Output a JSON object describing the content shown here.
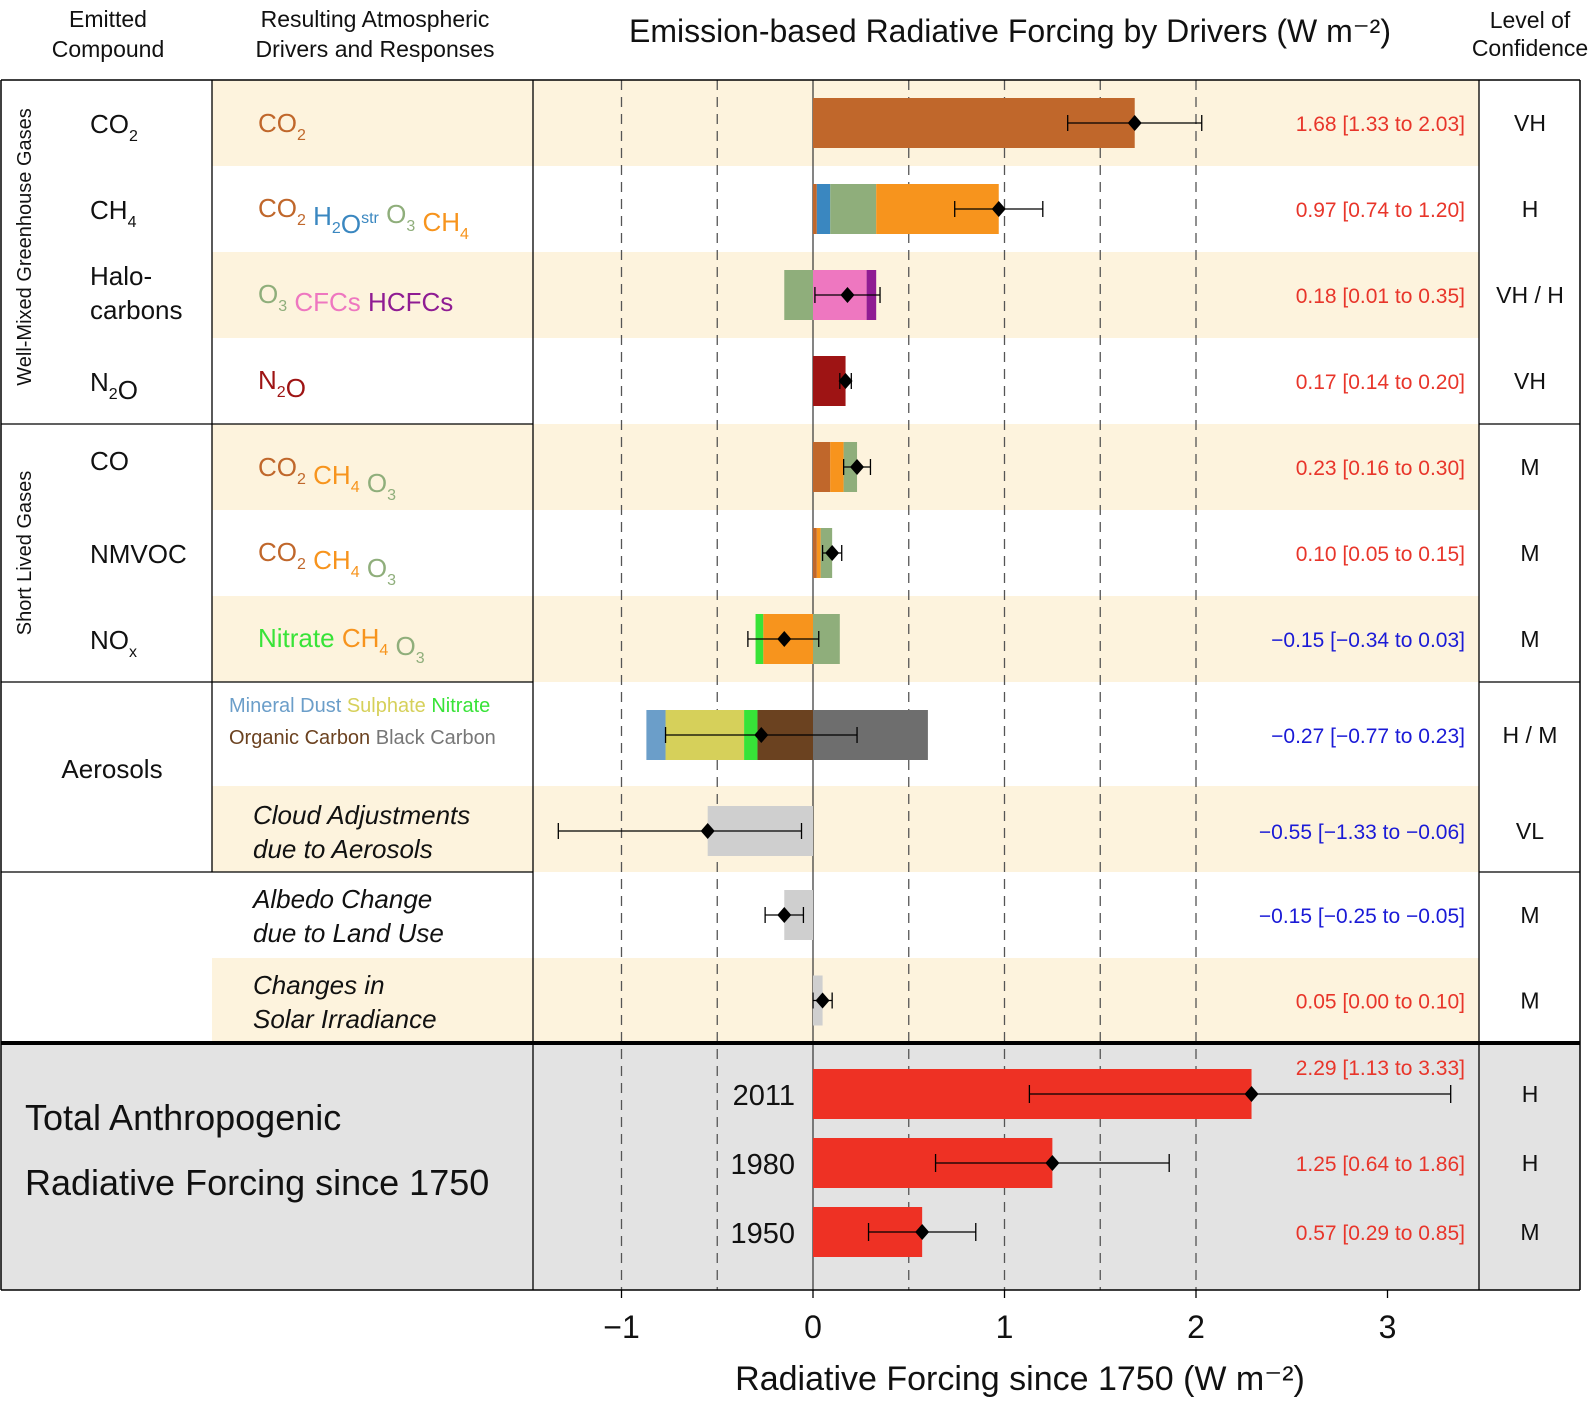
{
  "headers": {
    "col1": [
      "Emitted",
      "Compound"
    ],
    "col2": [
      "Resulting Atmospheric",
      "Drivers and Responses"
    ],
    "col4": [
      "Level of",
      "Confidence"
    ]
  },
  "chart_data": {
    "type": "bar",
    "title": "Emission-based Radiative Forcing by Drivers (W m⁻²)",
    "xlabel": "Radiative Forcing since 1750 (W m⁻²)",
    "xlim": [
      -1.5,
      3.5
    ],
    "xticks": [
      -1,
      0,
      1,
      2,
      3
    ],
    "xtick_labels": [
      "−1",
      "0",
      "1",
      "2",
      "3"
    ],
    "dashed_gridlines": [
      -1,
      -0.5,
      0.5,
      1,
      1.5,
      2
    ],
    "groups": [
      {
        "label": "Well-Mixed Greenhouse Gases"
      },
      {
        "label": "Short Lived Gases"
      }
    ],
    "total_label": [
      "Total Anthropogenic",
      "Radiative Forcing since 1750"
    ],
    "rows": [
      {
        "compound": [
          "CO",
          "2"
        ],
        "drivers": [
          {
            "t": "CO",
            "s": "2",
            "c": "#c0672b"
          }
        ],
        "segments": [
          {
            "v": 1.68,
            "c": "#c0672b"
          }
        ],
        "best": 1.68,
        "lo": 1.33,
        "hi": 2.03,
        "value_text": "1.68 [1.33 to 2.03]",
        "value_color": "#e8352a",
        "confidence": "VH"
      },
      {
        "compound": [
          "CH",
          "4"
        ],
        "drivers": [
          {
            "t": "CO",
            "s": "2",
            "c": "#c0672b"
          },
          {
            "t": "H",
            "s": "2",
            "t2": "O",
            "sup": "str",
            "c": "#3a87c0"
          },
          {
            "t": "O",
            "s": "3",
            "c": "#8fae7b"
          },
          {
            "t": "CH",
            "s": "4",
            "c": "#f7941d"
          }
        ],
        "segments": [
          {
            "v": 0.02,
            "c": "#c0672b"
          },
          {
            "v": 0.07,
            "c": "#3a87c0"
          },
          {
            "v": 0.24,
            "c": "#8fae7b"
          },
          {
            "v": 0.64,
            "c": "#f7941d"
          }
        ],
        "best": 0.97,
        "lo": 0.74,
        "hi": 1.2,
        "value_text": "0.97 [0.74 to 1.20]",
        "value_color": "#e8352a",
        "confidence": "H"
      },
      {
        "compound": [
          "Halo-",
          "carbons"
        ],
        "drivers": [
          {
            "t": "O",
            "s": "3",
            "c": "#8fae7b"
          },
          {
            "t": "CFCs",
            "c": "#ee77c0"
          },
          {
            "t": "HCFCs",
            "c": "#8f1c93"
          }
        ],
        "segments": [
          {
            "v": -0.15,
            "c": "#8fae7b"
          },
          {
            "v": 0.28,
            "c": "#ee77c0"
          },
          {
            "v": 0.05,
            "c": "#8f1c93"
          }
        ],
        "best": 0.18,
        "lo": 0.01,
        "hi": 0.35,
        "value_text": "0.18 [0.01 to 0.35]",
        "value_color": "#e8352a",
        "confidence": "VH / H"
      },
      {
        "compound": [
          "N",
          "2",
          "O"
        ],
        "drivers": [
          {
            "t": "N",
            "s": "2",
            "t2": "O",
            "c": "#9e1414"
          }
        ],
        "segments": [
          {
            "v": 0.17,
            "c": "#9e1414"
          }
        ],
        "best": 0.17,
        "lo": 0.14,
        "hi": 0.2,
        "value_text": "0.17 [0.14 to 0.20]",
        "value_color": "#e8352a",
        "confidence": "VH"
      },
      {
        "compound": [
          "CO"
        ],
        "drivers": [
          {
            "t": "CO",
            "s": "2",
            "c": "#c0672b"
          },
          {
            "t": "CH",
            "s": "4",
            "c": "#f7941d"
          },
          {
            "t": "O",
            "s": "3",
            "c": "#8fae7b"
          }
        ],
        "segments": [
          {
            "v": 0.09,
            "c": "#c0672b"
          },
          {
            "v": 0.07,
            "c": "#f7941d"
          },
          {
            "v": 0.07,
            "c": "#8fae7b"
          }
        ],
        "best": 0.23,
        "lo": 0.16,
        "hi": 0.3,
        "value_text": "0.23 [0.16 to 0.30]",
        "value_color": "#e8352a",
        "confidence": "M"
      },
      {
        "compound": [
          "NMVOC"
        ],
        "drivers": [
          {
            "t": "CO",
            "s": "2",
            "c": "#c0672b"
          },
          {
            "t": "CH",
            "s": "4",
            "c": "#f7941d"
          },
          {
            "t": "O",
            "s": "3",
            "c": "#8fae7b"
          }
        ],
        "segments": [
          {
            "v": 0.02,
            "c": "#c0672b"
          },
          {
            "v": 0.02,
            "c": "#f7941d"
          },
          {
            "v": 0.06,
            "c": "#8fae7b"
          }
        ],
        "best": 0.1,
        "lo": 0.05,
        "hi": 0.15,
        "value_text": "0.10 [0.05 to 0.15]",
        "value_color": "#e8352a",
        "confidence": "M"
      },
      {
        "compound": [
          "NO",
          "x"
        ],
        "drivers": [
          {
            "t": "Nitrate",
            "c": "#38e338"
          },
          {
            "t": "CH",
            "s": "4",
            "c": "#f7941d"
          },
          {
            "t": "O",
            "s": "3",
            "c": "#8fae7b"
          }
        ],
        "segments": [
          {
            "v": -0.26,
            "c": "#f7941d"
          },
          {
            "v": -0.04,
            "c": "#38e338"
          },
          {
            "v": 0.14,
            "c": "#8fae7b"
          }
        ],
        "best": -0.15,
        "lo": -0.34,
        "hi": 0.03,
        "value_text": "−0.15 [−0.34 to 0.03]",
        "value_color": "#1a1ad6",
        "confidence": "M"
      },
      {
        "compound": [
          "Aerosols"
        ],
        "drivers_two_line": [
          [
            {
              "t": "Mineral Dust",
              "c": "#6b9ec9"
            },
            {
              "t": "Sulphate",
              "c": "#d6d05a"
            },
            {
              "t": "Nitrate",
              "c": "#38e338"
            }
          ],
          [
            {
              "t": "Organic Carbon",
              "c": "#6b4220"
            },
            {
              "t": "Black Carbon",
              "c": "#777777"
            }
          ]
        ],
        "segments": [
          {
            "v": -0.29,
            "c": "#6b4220"
          },
          {
            "v": -0.07,
            "c": "#38e338"
          },
          {
            "v": -0.41,
            "c": "#d6d05a"
          },
          {
            "v": -0.1,
            "c": "#6b9ec9"
          },
          {
            "v": 0.6,
            "c": "#6e6e6e"
          }
        ],
        "best": -0.27,
        "lo": -0.77,
        "hi": 0.23,
        "value_text": "−0.27 [−0.77 to 0.23]",
        "value_color": "#1a1ad6",
        "confidence": "H / M"
      },
      {
        "italic": [
          "Cloud Adjustments",
          "due to Aerosols"
        ],
        "segments": [
          {
            "v": -0.55,
            "c": "#cfcfcf"
          }
        ],
        "best": -0.55,
        "lo": -1.33,
        "hi": -0.06,
        "value_text": "−0.55 [−1.33 to −0.06]",
        "value_color": "#1a1ad6",
        "confidence": "VL"
      },
      {
        "italic": [
          "Albedo Change",
          "due to Land Use"
        ],
        "segments": [
          {
            "v": -0.15,
            "c": "#cfcfcf"
          }
        ],
        "best": -0.15,
        "lo": -0.25,
        "hi": -0.05,
        "value_text": "−0.15 [−0.25 to −0.05]",
        "value_color": "#1a1ad6",
        "confidence": "M"
      },
      {
        "italic": [
          "Changes in",
          "Solar Irradiance"
        ],
        "segments": [
          {
            "v": 0.05,
            "c": "#cfcfcf"
          }
        ],
        "best": 0.05,
        "lo": 0.0,
        "hi": 0.1,
        "value_text": "0.05 [0.00 to 0.10]",
        "value_color": "#e8352a",
        "confidence": "M"
      }
    ],
    "totals": [
      {
        "year": "2011",
        "value": 2.29,
        "lo": 1.13,
        "hi": 3.33,
        "value_text": "2.29 [1.13 to 3.33]",
        "confidence": "H"
      },
      {
        "year": "1980",
        "value": 1.25,
        "lo": 0.64,
        "hi": 1.86,
        "value_text": "1.25 [0.64 to 1.86]",
        "confidence": "H"
      },
      {
        "year": "1950",
        "value": 0.57,
        "lo": 0.29,
        "hi": 0.85,
        "value_text": "0.57 [0.29 to 0.85]",
        "confidence": "M"
      }
    ],
    "colors": {
      "row_band": "#fdf3dd",
      "total_band": "#e3e3e3",
      "total_bar": "#ee3124",
      "positive_text": "#e8352a",
      "negative_text": "#1a1ad6"
    }
  }
}
